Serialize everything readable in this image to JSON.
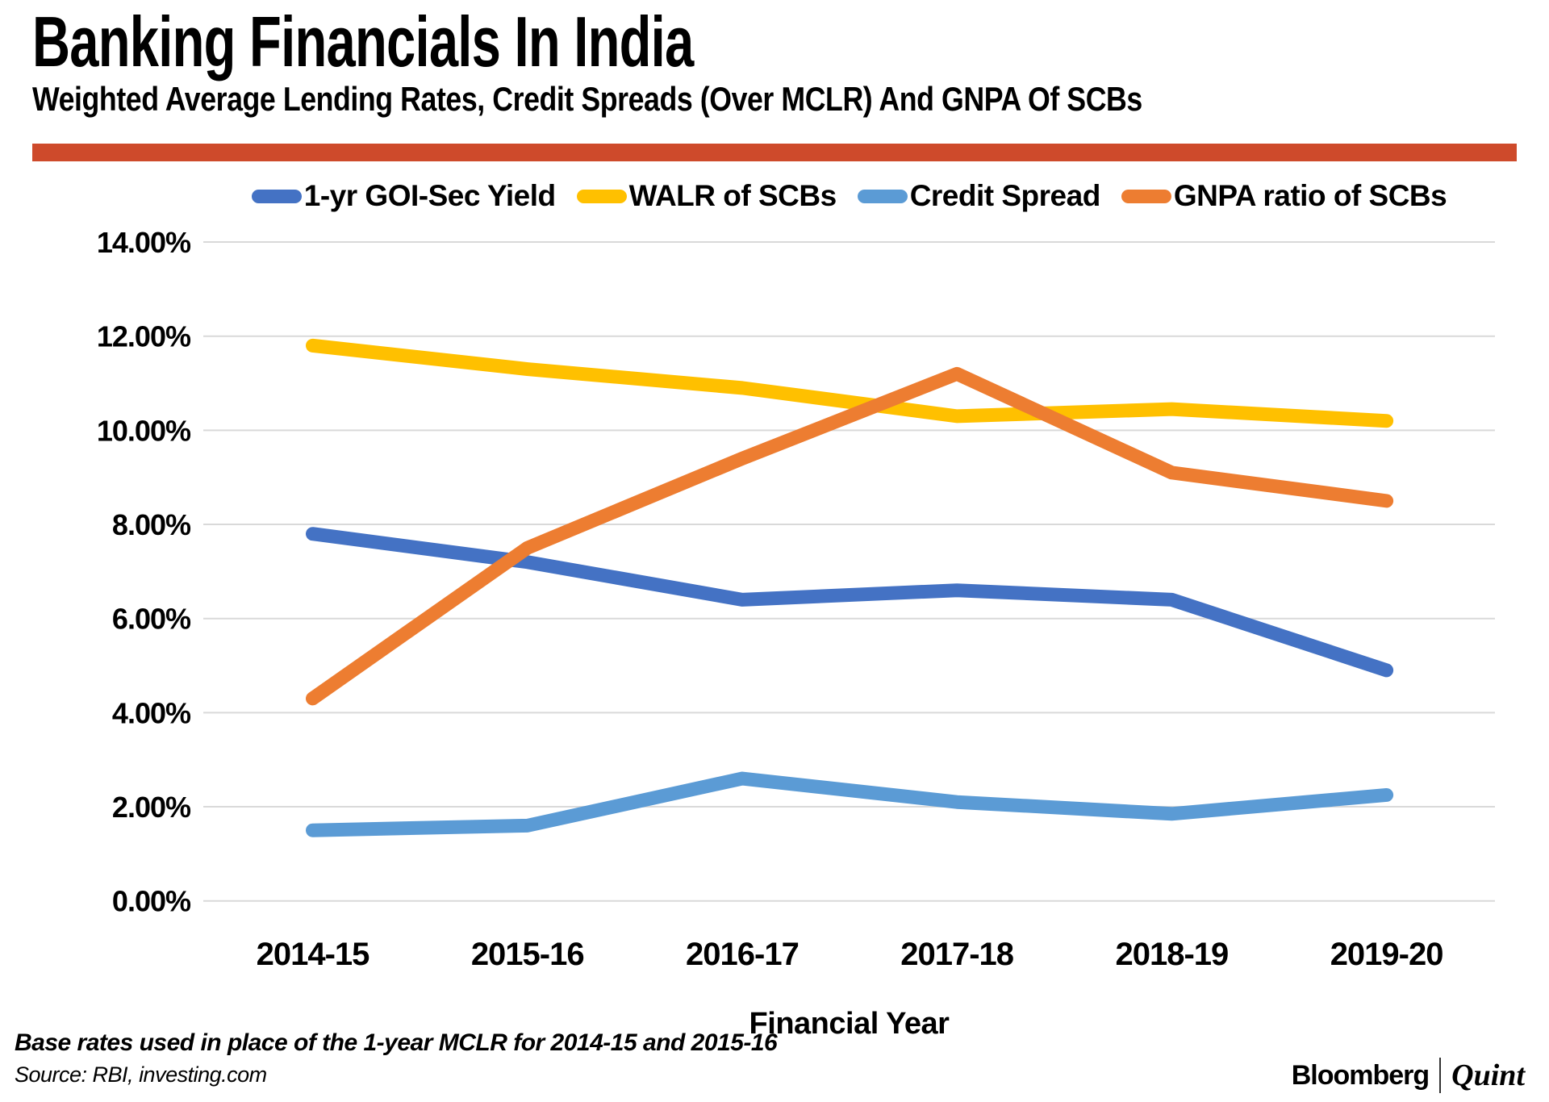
{
  "header": {
    "title": "Banking Financials In India",
    "subtitle": "Weighted Average Lending Rates, Credit Spreads (Over MCLR) And GNPA Of SCBs",
    "accent_bar_color": "#CE4A2B"
  },
  "chart_data": {
    "type": "line",
    "title": "Banking Financials In India",
    "categories": [
      "2014-15",
      "2015-16",
      "2016-17",
      "2017-18",
      "2018-19",
      "2019-20"
    ],
    "series": [
      {
        "name": "1-yr GOI-Sec Yield",
        "color": "#4472C4",
        "values": [
          7.8,
          7.2,
          6.4,
          6.6,
          6.4,
          4.9
        ]
      },
      {
        "name": "WALR of SCBs",
        "color": "#FFC000",
        "values": [
          11.8,
          11.3,
          10.9,
          10.3,
          10.45,
          10.2
        ]
      },
      {
        "name": "Credit Spread",
        "color": "#5B9BD5",
        "values": [
          1.5,
          1.6,
          2.6,
          2.1,
          1.85,
          2.25
        ]
      },
      {
        "name": "GNPA ratio of SCBs",
        "color": "#ED7D31",
        "values": [
          4.3,
          7.5,
          9.4,
          11.2,
          9.1,
          8.5
        ]
      }
    ],
    "xlabel": "Financial Year",
    "ylabel": "",
    "ylim": [
      0,
      14
    ],
    "ytick_step": 2,
    "ytick_labels": [
      "0.00%",
      "2.00%",
      "4.00%",
      "6.00%",
      "8.00%",
      "10.00%",
      "12.00%",
      "14.00%"
    ],
    "grid": true,
    "legend_position": "top",
    "units": "percent"
  },
  "footer": {
    "note": "Base rates used in place of the 1-year MCLR for 2014-15 and 2015-16",
    "source": "Source: RBI, investing.com",
    "logo_primary": "Bloomberg",
    "logo_secondary": "Quint"
  }
}
